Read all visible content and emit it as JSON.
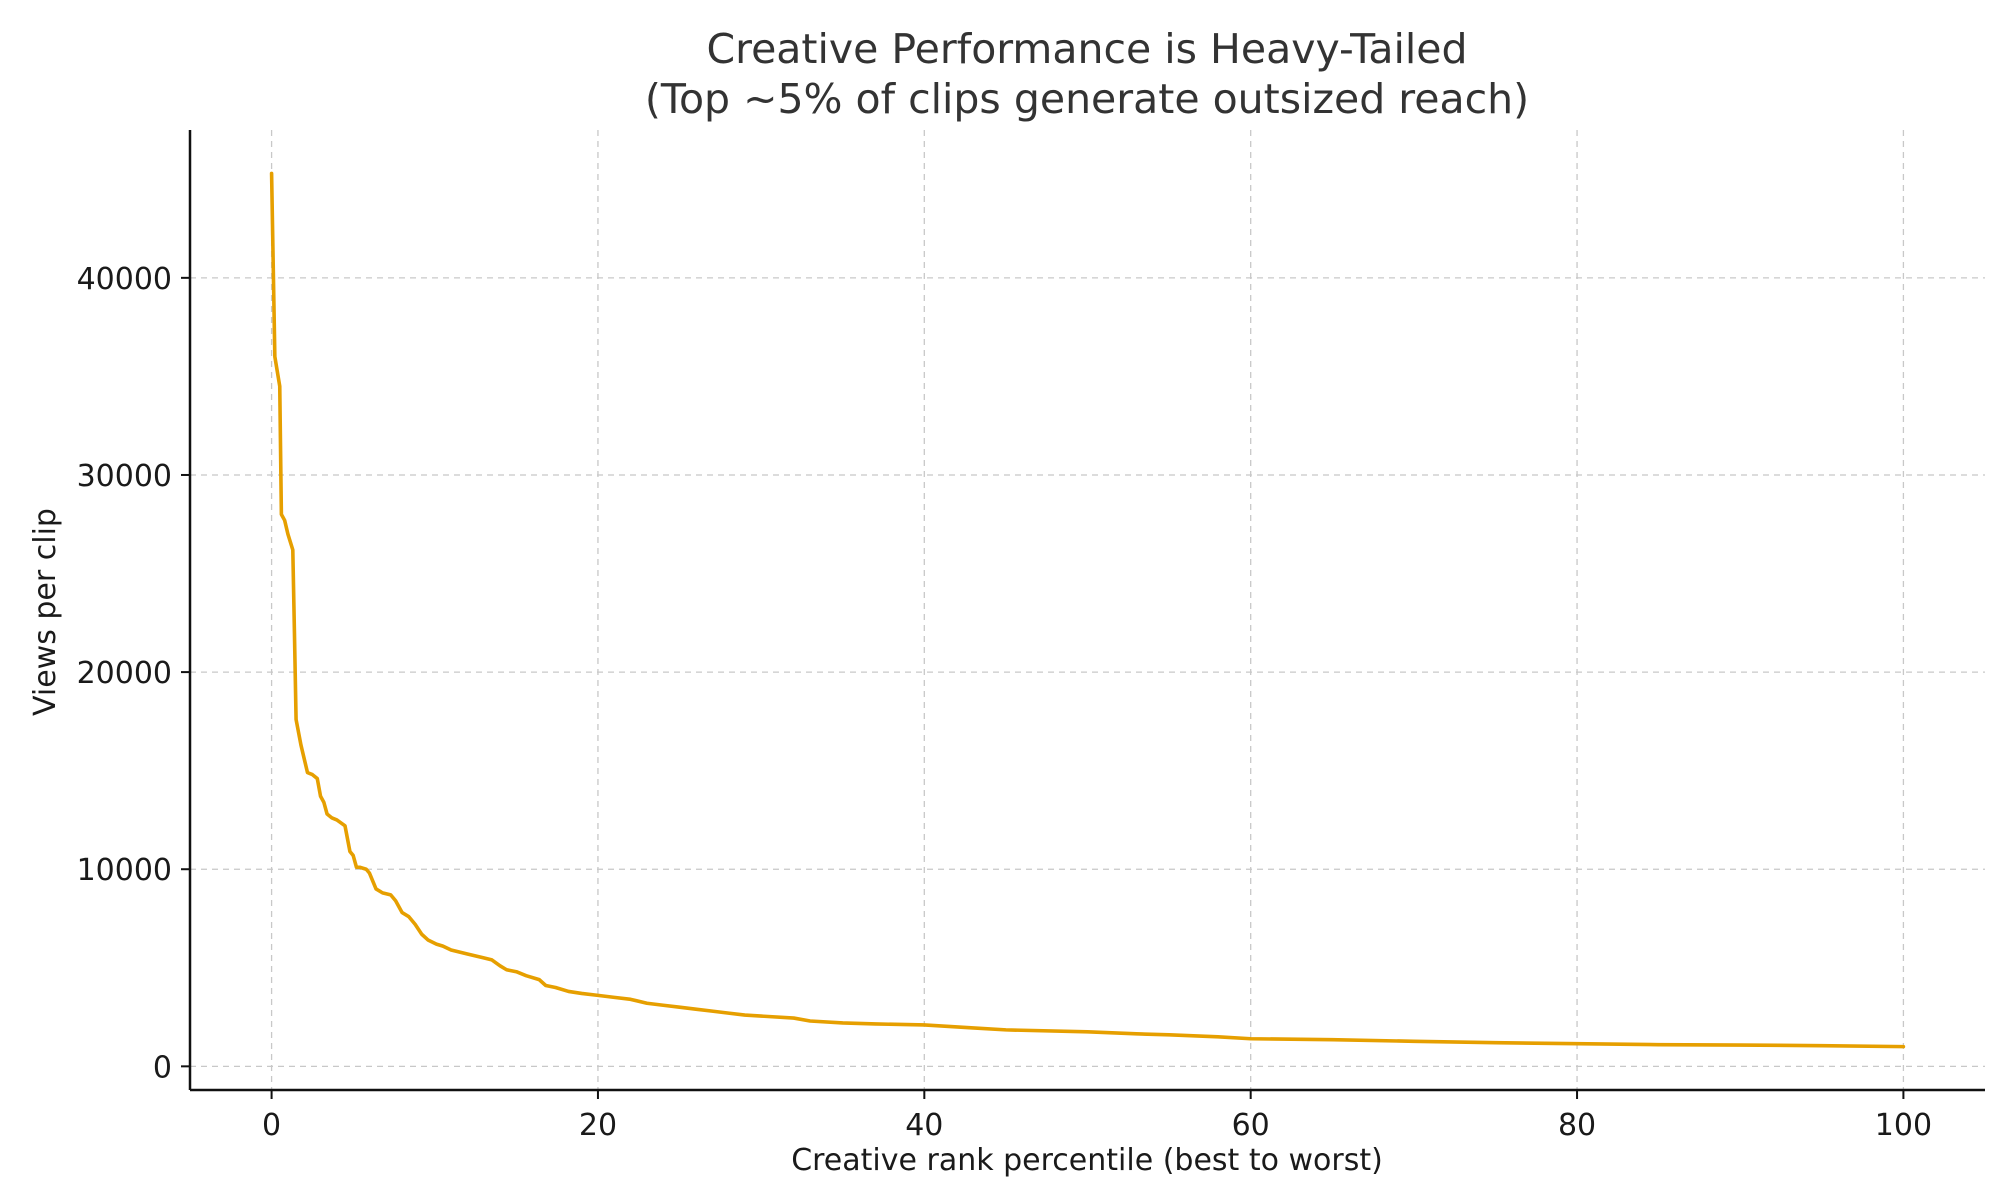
{
  "chart_data": {
    "type": "line",
    "title_line1": "Creative Performance is Heavy-Tailed",
    "title_line2": "(Top ~5% of clips generate outsized reach)",
    "xlabel": "Creative rank percentile (best to worst)",
    "ylabel": "Views per clip",
    "xlim": [
      -5,
      105
    ],
    "ylim": [
      -1200,
      47500
    ],
    "xticks": [
      0,
      20,
      40,
      60,
      80,
      100
    ],
    "yticks": [
      0,
      10000,
      20000,
      30000,
      40000
    ],
    "grid": true,
    "line_color": "#e69f00",
    "series": [
      {
        "x": [
          0,
          0.2,
          0.5,
          0.6,
          0.8,
          1.0,
          1.3,
          1.4,
          1.5,
          1.8,
          2.2,
          2.5,
          2.8,
          3.0,
          3.2,
          3.4,
          3.7,
          4.0,
          4.5,
          4.8,
          5.0,
          5.2,
          5.4,
          5.8,
          6.0,
          6.4,
          6.8,
          7.3,
          7.6,
          8.0,
          8.4,
          8.8,
          9.2,
          9.6,
          10.1,
          10.5,
          11.0,
          12.0,
          13.0,
          13.5,
          14.0,
          14.4,
          15.0,
          15.6,
          16.4,
          16.8,
          17.4,
          18.2,
          19.0,
          20.0,
          21.0,
          22.0,
          23.0,
          24.0,
          25.0,
          26.0,
          27.0,
          28.0,
          29.0,
          30.0,
          32.0,
          33.0,
          35.0,
          37.0,
          40.0,
          43.0,
          45.0,
          50.0,
          53.0,
          55.0,
          58.0,
          60.0,
          65.0,
          70.0,
          75.0,
          80.0,
          85.0,
          90.0,
          95.0,
          100.0
        ],
        "y": [
          45300,
          36000,
          34500,
          28000,
          27700,
          27000,
          26200,
          22000,
          17600,
          16300,
          14900,
          14800,
          14600,
          13700,
          13400,
          12800,
          12600,
          12500,
          12200,
          10900,
          10700,
          10100,
          10100,
          10000,
          9800,
          9000,
          8800,
          8700,
          8400,
          7800,
          7600,
          7200,
          6700,
          6400,
          6200,
          6100,
          5900,
          5700,
          5500,
          5400,
          5100,
          4900,
          4800,
          4600,
          4400,
          4100,
          4000,
          3800,
          3700,
          3600,
          3500,
          3400,
          3200,
          3100,
          3000,
          2900,
          2800,
          2700,
          2600,
          2550,
          2450,
          2300,
          2200,
          2150,
          2100,
          1950,
          1850,
          1750,
          1650,
          1600,
          1500,
          1400,
          1350,
          1270,
          1200,
          1150,
          1100,
          1080,
          1050,
          1000
        ]
      }
    ]
  }
}
